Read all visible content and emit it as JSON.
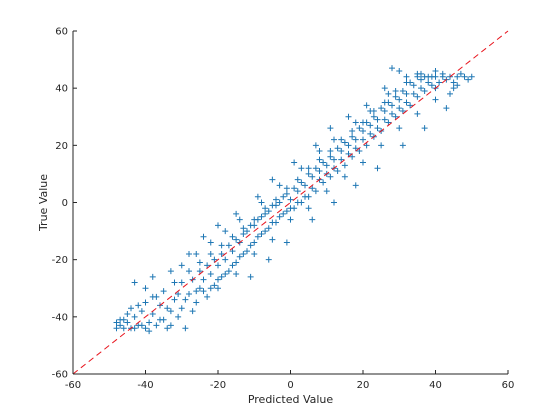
{
  "chart_data": {
    "type": "scatter",
    "title": "",
    "xlabel": "Predicted Value",
    "ylabel": "True Value",
    "xlim": [
      -60,
      60
    ],
    "ylim": [
      -60,
      60
    ],
    "xticks": [
      -60,
      -40,
      -20,
      0,
      20,
      40,
      60
    ],
    "yticks": [
      -60,
      -40,
      -20,
      0,
      20,
      40,
      60
    ],
    "grid": false,
    "legend": "none",
    "marker": "+",
    "colors": {
      "points": "#1f77b4",
      "reference_line": "#e8141d",
      "axes": "#262626"
    },
    "reference_line": {
      "style": "dashed",
      "from": [
        -60,
        -60
      ],
      "to": [
        60,
        60
      ]
    },
    "series": [
      {
        "values_note": "",
        "points": [
          [
            -48,
            -44
          ],
          [
            -47,
            -41
          ],
          [
            -46,
            -44
          ],
          [
            -45,
            -42
          ],
          [
            -44,
            -44
          ],
          [
            -43,
            -40
          ],
          [
            -42,
            -43
          ],
          [
            -41,
            -38
          ],
          [
            -40,
            -44
          ],
          [
            -39,
            -42
          ],
          [
            -38,
            -39
          ],
          [
            -37,
            -43
          ],
          [
            -36,
            -36
          ],
          [
            -35,
            -41
          ],
          [
            -34,
            -44
          ],
          [
            -33,
            -38
          ],
          [
            -32,
            -34
          ],
          [
            -31,
            -40
          ],
          [
            -30,
            -37
          ],
          [
            -29,
            -44
          ],
          [
            -28,
            -32
          ],
          [
            -27,
            -38
          ],
          [
            -26,
            -35
          ],
          [
            -25,
            -30
          ],
          [
            -24,
            -27
          ],
          [
            -23,
            -33
          ],
          [
            -22,
            -25
          ],
          [
            -21,
            -29
          ],
          [
            -20,
            -22
          ],
          [
            -19,
            -26
          ],
          [
            -18,
            -20
          ],
          [
            -17,
            -24
          ],
          [
            -16,
            -17
          ],
          [
            -15,
            -21
          ],
          [
            -14,
            -14
          ],
          [
            -13,
            -18
          ],
          [
            -12,
            -10
          ],
          [
            -11,
            -15
          ],
          [
            -10,
            -8
          ],
          [
            -9,
            -12
          ],
          [
            -8,
            -5
          ],
          [
            -7,
            -10
          ],
          [
            -6,
            -3
          ],
          [
            -5,
            -7
          ],
          [
            -4,
            -1
          ],
          [
            -3,
            -5
          ],
          [
            -2,
            2
          ],
          [
            -1,
            -3
          ],
          [
            0,
            1
          ],
          [
            1,
            -2
          ],
          [
            2,
            4
          ],
          [
            3,
            0
          ],
          [
            4,
            6
          ],
          [
            5,
            2
          ],
          [
            6,
            9
          ],
          [
            7,
            4
          ],
          [
            8,
            11
          ],
          [
            9,
            7
          ],
          [
            10,
            13
          ],
          [
            11,
            9
          ],
          [
            12,
            15
          ],
          [
            13,
            11
          ],
          [
            14,
            18
          ],
          [
            15,
            13
          ],
          [
            16,
            20
          ],
          [
            17,
            16
          ],
          [
            18,
            22
          ],
          [
            19,
            18
          ],
          [
            20,
            25
          ],
          [
            21,
            20
          ],
          [
            22,
            27
          ],
          [
            23,
            23
          ],
          [
            24,
            29
          ],
          [
            25,
            25
          ],
          [
            26,
            32
          ],
          [
            27,
            28
          ],
          [
            28,
            34
          ],
          [
            29,
            30
          ],
          [
            30,
            36
          ],
          [
            31,
            32
          ],
          [
            32,
            38
          ],
          [
            33,
            34
          ],
          [
            34,
            41
          ],
          [
            35,
            37
          ],
          [
            36,
            43
          ],
          [
            37,
            39
          ],
          [
            38,
            44
          ],
          [
            39,
            41
          ],
          [
            40,
            44
          ],
          [
            41,
            42
          ],
          [
            42,
            44
          ],
          [
            43,
            43
          ],
          [
            44,
            44
          ],
          [
            45,
            42
          ],
          [
            46,
            44
          ],
          [
            47,
            45
          ],
          [
            48,
            44
          ],
          [
            49,
            43
          ],
          [
            50,
            44
          ],
          [
            -31,
            -32
          ],
          [
            -30,
            -28
          ],
          [
            -29,
            -34
          ],
          [
            -27,
            -27
          ],
          [
            -26,
            -31
          ],
          [
            -25,
            -24
          ],
          [
            -24,
            -31
          ],
          [
            -23,
            -22
          ],
          [
            -22,
            -30
          ],
          [
            -21,
            -20
          ],
          [
            -20,
            -27
          ],
          [
            -19,
            -18
          ],
          [
            -18,
            -25
          ],
          [
            -17,
            -15
          ],
          [
            -16,
            -22
          ],
          [
            -15,
            -13
          ],
          [
            -14,
            -19
          ],
          [
            -13,
            -11
          ],
          [
            -12,
            -17
          ],
          [
            -11,
            -8
          ],
          [
            -10,
            -14
          ],
          [
            -9,
            -6
          ],
          [
            -8,
            -11
          ],
          [
            -7,
            -4
          ],
          [
            -6,
            -9
          ],
          [
            -5,
            -1
          ],
          [
            -4,
            -7
          ],
          [
            -3,
            0
          ],
          [
            -2,
            -4
          ],
          [
            -1,
            3
          ],
          [
            0,
            -2
          ],
          [
            1,
            5
          ],
          [
            2,
            0
          ],
          [
            3,
            7
          ],
          [
            4,
            2
          ],
          [
            5,
            10
          ],
          [
            6,
            5
          ],
          [
            7,
            12
          ],
          [
            8,
            8
          ],
          [
            9,
            14
          ],
          [
            10,
            10
          ],
          [
            11,
            16
          ],
          [
            12,
            12
          ],
          [
            13,
            19
          ],
          [
            14,
            15
          ],
          [
            15,
            21
          ],
          [
            16,
            17
          ],
          [
            17,
            23
          ],
          [
            18,
            19
          ],
          [
            19,
            26
          ],
          [
            20,
            22
          ],
          [
            21,
            28
          ],
          [
            22,
            24
          ],
          [
            23,
            30
          ],
          [
            24,
            26
          ],
          [
            25,
            33
          ],
          [
            26,
            29
          ],
          [
            27,
            35
          ],
          [
            28,
            31
          ],
          [
            29,
            37
          ],
          [
            30,
            33
          ],
          [
            31,
            39
          ],
          [
            32,
            35
          ],
          [
            33,
            42
          ],
          [
            34,
            38
          ],
          [
            35,
            44
          ],
          [
            36,
            40
          ],
          [
            37,
            44
          ],
          [
            38,
            42
          ],
          [
            39,
            44
          ],
          [
            40,
            40
          ],
          [
            -44,
            -37
          ],
          [
            -43,
            -44
          ],
          [
            -42,
            -36
          ],
          [
            -40,
            -35
          ],
          [
            -39,
            -45
          ],
          [
            -38,
            -33
          ],
          [
            -36,
            -41
          ],
          [
            -35,
            -31
          ],
          [
            -34,
            -37
          ],
          [
            -33,
            -43
          ],
          [
            -37,
            -33
          ],
          [
            -41,
            -43
          ],
          [
            -45,
            -39
          ],
          [
            -46,
            -41
          ],
          [
            -47,
            -43
          ],
          [
            -48,
            -42
          ],
          [
            -32,
            -28
          ],
          [
            -28,
            -24
          ],
          [
            -25,
            -21
          ],
          [
            -22,
            -18
          ],
          [
            -19,
            -15
          ],
          [
            -16,
            -12
          ],
          [
            -13,
            -9
          ],
          [
            -10,
            -6
          ],
          [
            -7,
            -2
          ],
          [
            -4,
            1
          ],
          [
            -1,
            5
          ],
          [
            2,
            8
          ],
          [
            5,
            12
          ],
          [
            8,
            15
          ],
          [
            11,
            18
          ],
          [
            14,
            22
          ],
          [
            17,
            25
          ],
          [
            20,
            28
          ],
          [
            23,
            32
          ],
          [
            26,
            35
          ],
          [
            29,
            39
          ],
          [
            32,
            42
          ],
          [
            35,
            45
          ],
          [
            30,
            46
          ],
          [
            -20,
            -30
          ],
          [
            -15,
            -25
          ],
          [
            -10,
            -18
          ],
          [
            -5,
            -13
          ],
          [
            0,
            -6
          ],
          [
            5,
            -2
          ],
          [
            10,
            4
          ],
          [
            15,
            9
          ],
          [
            20,
            14
          ],
          [
            25,
            20
          ],
          [
            30,
            26
          ],
          [
            35,
            31
          ],
          [
            40,
            36
          ],
          [
            45,
            40
          ],
          [
            40,
            46
          ],
          [
            28,
            47
          ],
          [
            -40,
            -30
          ],
          [
            -30,
            -22
          ],
          [
            -26,
            -18
          ],
          [
            -22,
            -14
          ],
          [
            -18,
            -10
          ],
          [
            -14,
            -6
          ],
          [
            -8,
            0
          ],
          [
            -3,
            6
          ],
          [
            3,
            12
          ],
          [
            8,
            18
          ],
          [
            12,
            22
          ],
          [
            18,
            28
          ],
          [
            22,
            32
          ],
          [
            27,
            38
          ],
          [
            -11,
            -26
          ],
          [
            -6,
            -20
          ],
          [
            -1,
            -14
          ],
          [
            6,
            -6
          ],
          [
            12,
            0
          ],
          [
            18,
            6
          ],
          [
            24,
            12
          ],
          [
            31,
            20
          ],
          [
            37,
            26
          ],
          [
            43,
            33
          ],
          [
            -43,
            -28
          ],
          [
            -38,
            -26
          ],
          [
            -33,
            -24
          ],
          [
            -28,
            -18
          ],
          [
            -24,
            -12
          ],
          [
            -20,
            -8
          ],
          [
            -15,
            -4
          ],
          [
            -9,
            2
          ],
          [
            -5,
            8
          ],
          [
            1,
            14
          ],
          [
            7,
            20
          ],
          [
            11,
            26
          ],
          [
            16,
            30
          ],
          [
            21,
            34
          ],
          [
            26,
            40
          ],
          [
            32,
            44
          ],
          [
            36,
            45
          ],
          [
            42,
            45
          ],
          [
            46,
            41
          ],
          [
            44,
            38
          ]
        ]
      }
    ]
  }
}
